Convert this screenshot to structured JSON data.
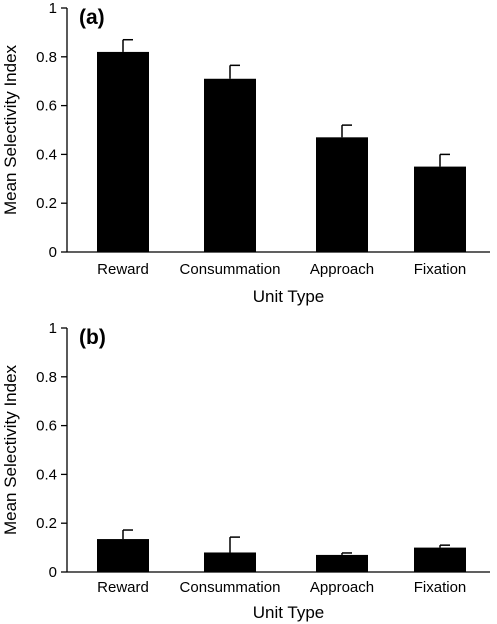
{
  "chart_data": [
    {
      "type": "bar",
      "panel_label": "(a)",
      "categories": [
        "Reward",
        "Consummation",
        "Approach",
        "Fixation"
      ],
      "values": [
        0.82,
        0.71,
        0.47,
        0.35
      ],
      "errors": [
        0.05,
        0.055,
        0.05,
        0.05
      ],
      "xlabel": "Unit Type",
      "ylabel": "Mean Selectivity Index",
      "ylim": [
        0,
        1
      ],
      "yticks": [
        "0",
        "0.2",
        "0.4",
        "0.6",
        "0.8",
        "1"
      ],
      "bar_color": "#000000",
      "grid": false
    },
    {
      "type": "bar",
      "panel_label": "(b)",
      "categories": [
        "Reward",
        "Consummation",
        "Approach",
        "Fixation"
      ],
      "values": [
        0.135,
        0.08,
        0.07,
        0.1
      ],
      "errors": [
        0.037,
        0.063,
        0.008,
        0.01
      ],
      "xlabel": "Unit Type",
      "ylabel": "Mean Selectivity Index",
      "ylim": [
        0,
        1
      ],
      "yticks": [
        "0",
        "0.2",
        "0.4",
        "0.6",
        "0.8",
        "1"
      ],
      "bar_color": "#000000",
      "grid": false
    }
  ]
}
